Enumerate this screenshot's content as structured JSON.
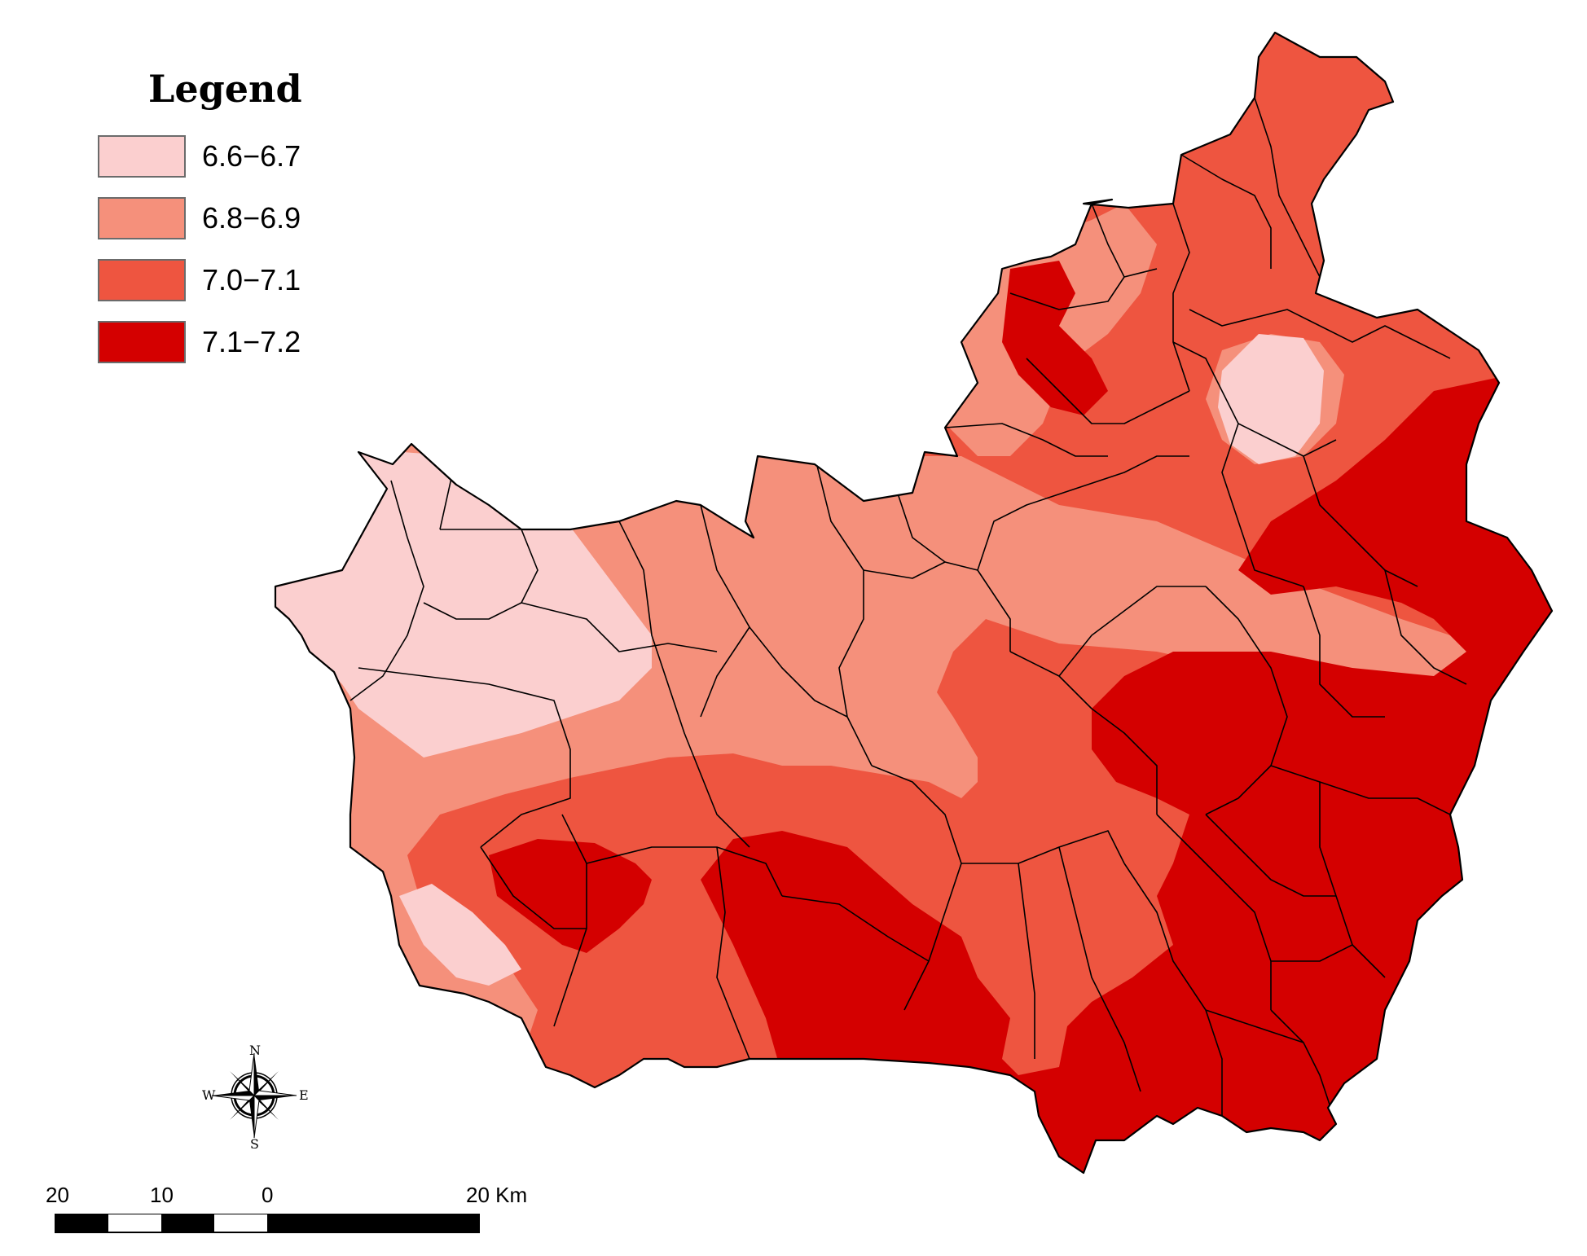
{
  "legend": {
    "title": "Legend",
    "items": [
      {
        "label": "6.6−6.7",
        "color": "#fbcfcf"
      },
      {
        "label": "6.8−6.9",
        "color": "#f5907b"
      },
      {
        "label": "7.0−7.1",
        "color": "#ee5540"
      },
      {
        "label": "7.1−7.2",
        "color": "#d40000"
      }
    ]
  },
  "compass": {
    "n": "N",
    "s": "S",
    "e": "E",
    "w": "W"
  },
  "scale_bar": {
    "labels": [
      "20",
      "10",
      "0",
      "20 Km"
    ]
  }
}
